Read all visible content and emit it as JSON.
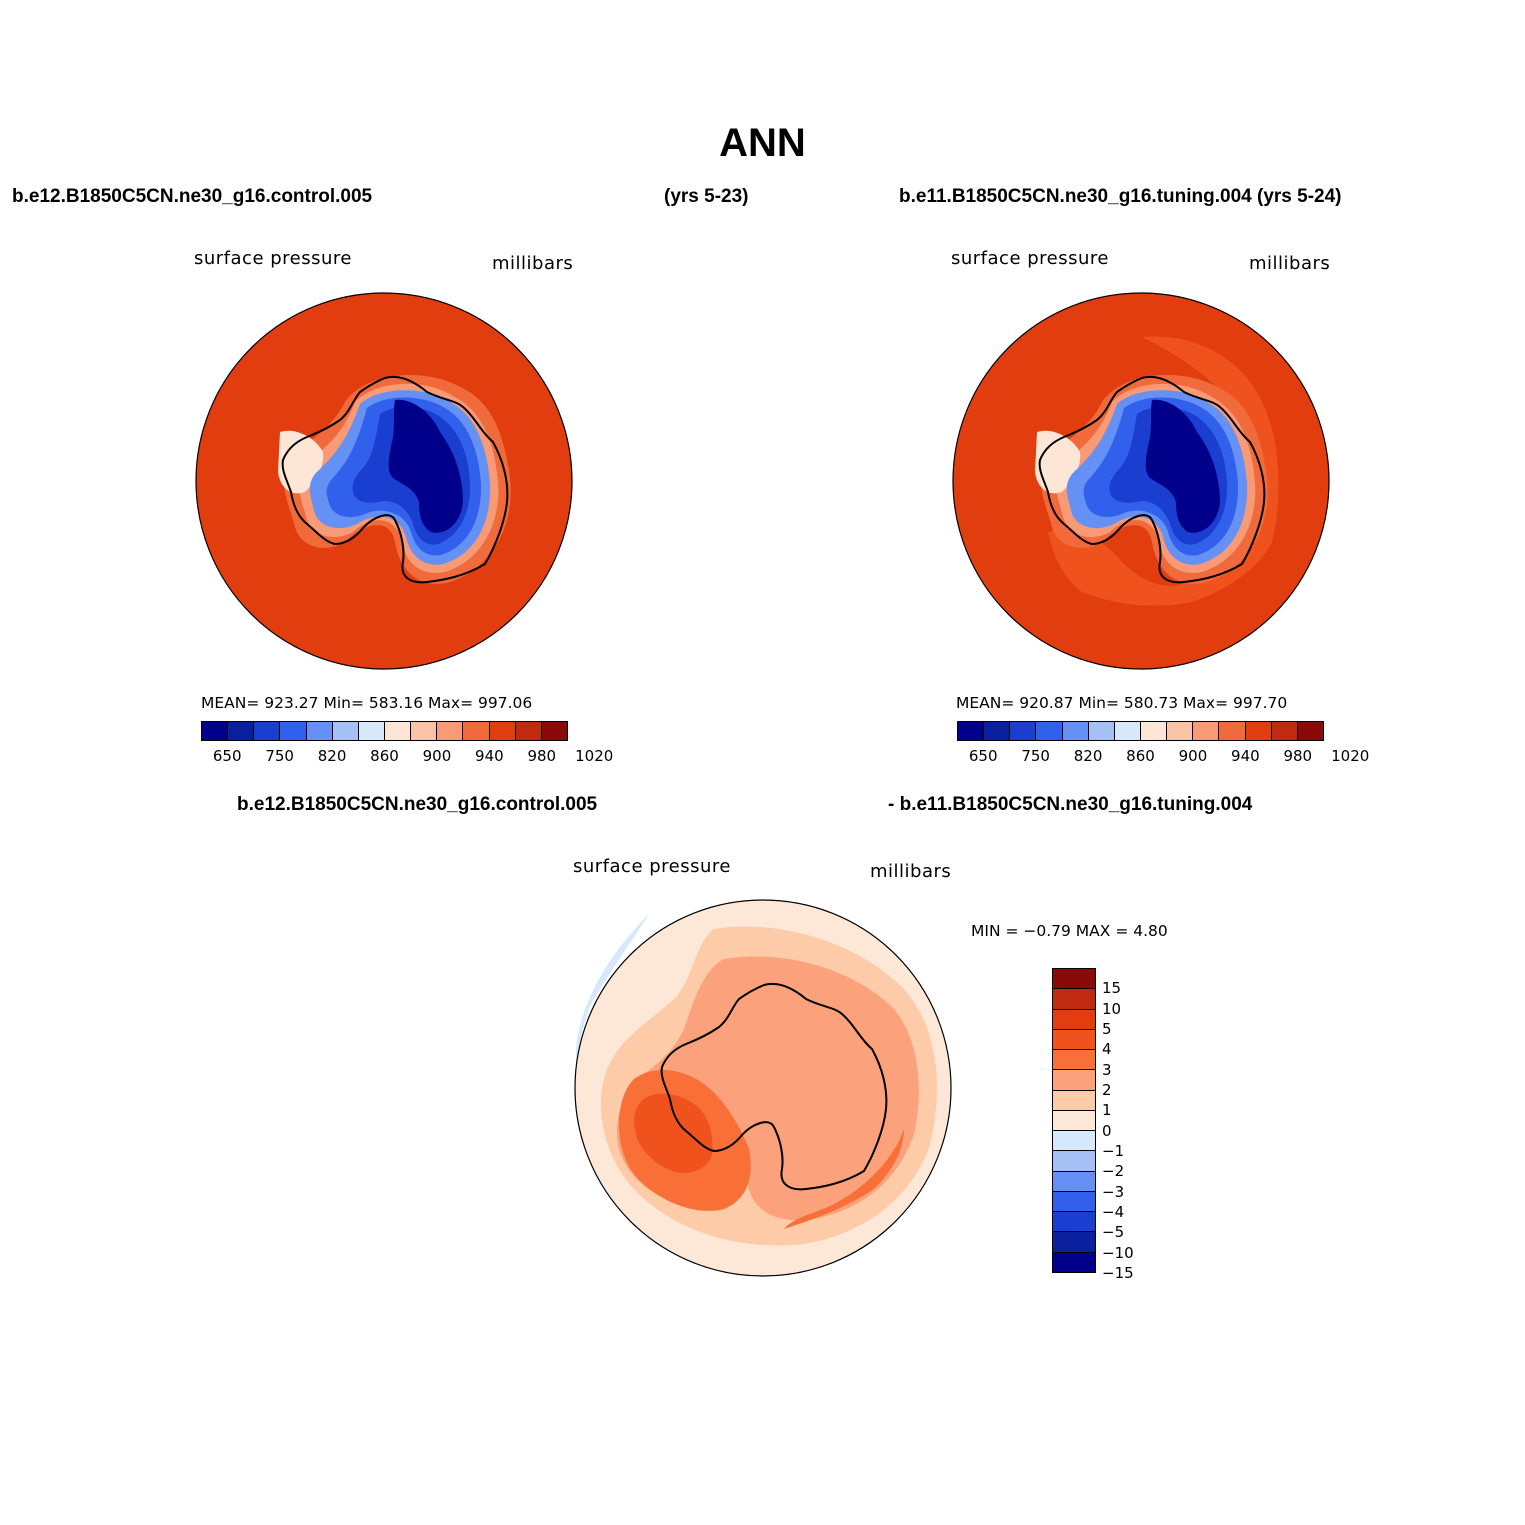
{
  "title": "ANN",
  "headers": {
    "top_left": "b.e12.B1850C5CN.ne30_g16.control.005",
    "top_middle": "(yrs 5-23)",
    "top_right": "b.e11.B1850C5CN.ne30_g16.tuning.004 (yrs 5-24)",
    "bottom_left": "b.e12.B1850C5CN.ne30_g16.control.005",
    "bottom_right": "- b.e11.B1850C5CN.ne30_g16.tuning.004"
  },
  "panels": {
    "left": {
      "variable": "surface pressure",
      "units": "millibars",
      "stats": "MEAN= 923.27   Min= 583.16   Max= 997.06"
    },
    "right": {
      "variable": "surface pressure",
      "units": "millibars",
      "stats": "MEAN= 920.87   Min= 580.73   Max= 997.70"
    },
    "diff": {
      "variable": "surface pressure",
      "units": "millibars",
      "stats": "MIN =   −0.79 MAX =     4.80"
    }
  },
  "colorbar_main": {
    "colors": [
      "#00008a",
      "#0a1f9e",
      "#1a3fd0",
      "#3060ec",
      "#6590f4",
      "#a4c0f5",
      "#d8e8fb",
      "#fde6d6",
      "#fbc3a6",
      "#f79a75",
      "#f06a3c",
      "#e23d0f",
      "#bf2a10",
      "#8a0a0a"
    ],
    "ticks": [
      "650",
      "750",
      "820",
      "860",
      "900",
      "940",
      "980",
      "1020"
    ]
  },
  "colorbar_diff": {
    "colors": [
      "#8a0a0a",
      "#bf2a10",
      "#e23d0f",
      "#f0521e",
      "#f86f38",
      "#fba27c",
      "#fdcba8",
      "#fde8d8",
      "#d8e8fb",
      "#a4c0f5",
      "#6590f4",
      "#3060ec",
      "#1a3fd0",
      "#0a1f9e",
      "#00008a"
    ],
    "ticks": [
      "15",
      "10",
      "5",
      "4",
      "3",
      "2",
      "1",
      "0",
      "−1",
      "−2",
      "−3",
      "−4",
      "−5",
      "−10",
      "−15"
    ]
  }
}
